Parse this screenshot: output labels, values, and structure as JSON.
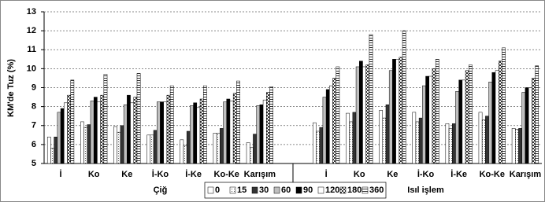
{
  "chart_data": {
    "type": "bar",
    "ylabel": "KM'de Tuz (%)",
    "categories": [
      "İ",
      "Ko",
      "Ke",
      "İ-Ko",
      "İ-Ke",
      "Ko-Ke",
      "Karışım",
      null,
      "İ",
      "Ko",
      "Ke",
      "İ-Ko",
      "İ-Ke",
      "Ko-Ke",
      "Karışım"
    ],
    "groups": [
      "Çiğ",
      "Isıl işlem"
    ],
    "ylim": [
      5,
      13
    ],
    "yticks": [
      5,
      6,
      7,
      8,
      9,
      10,
      11,
      12,
      13
    ],
    "grid": true,
    "legend": "bottom",
    "series": [
      {
        "name": "0",
        "color": "#ffffff",
        "pattern": "solid",
        "values": [
          6.4,
          7.2,
          6.95,
          6.5,
          6.25,
          6.6,
          6.1,
          null,
          7.15,
          7.65,
          7.8,
          7.7,
          7.1,
          7.7,
          6.85
        ]
      },
      {
        "name": "15",
        "color": "#bbbbbb",
        "pattern": "dots",
        "values": [
          5.8,
          6.9,
          6.65,
          6.5,
          5.95,
          6.6,
          5.85,
          null,
          6.7,
          7.2,
          7.4,
          7.2,
          6.85,
          7.3,
          6.8
        ]
      },
      {
        "name": "30",
        "color": "#333333",
        "pattern": "solid",
        "values": [
          6.4,
          7.05,
          7.0,
          6.75,
          6.7,
          6.85,
          6.55,
          null,
          6.9,
          7.7,
          8.1,
          7.4,
          7.1,
          7.5,
          6.85
        ]
      },
      {
        "name": "60",
        "color": "#bfbfbf",
        "pattern": "solid",
        "values": [
          7.7,
          8.3,
          8.1,
          8.25,
          8.05,
          8.25,
          8.05,
          null,
          8.5,
          10.1,
          9.9,
          9.1,
          8.8,
          9.3,
          8.75
        ]
      },
      {
        "name": "90",
        "color": "#000000",
        "pattern": "solid",
        "values": [
          7.9,
          8.5,
          8.6,
          8.25,
          8.2,
          8.4,
          8.1,
          null,
          8.9,
          10.4,
          10.5,
          9.6,
          9.4,
          9.8,
          9.0
        ]
      },
      {
        "name": "120",
        "color": "#ffffff",
        "pattern": "solid",
        "values": [
          8.2,
          8.25,
          8.2,
          8.25,
          7.95,
          8.3,
          8.35,
          null,
          9.1,
          10.1,
          10.5,
          9.6,
          9.4,
          9.9,
          9.0
        ]
      },
      {
        "name": "180",
        "color": "#555555",
        "pattern": "checker",
        "values": [
          8.6,
          8.6,
          8.5,
          8.6,
          8.4,
          8.7,
          8.75,
          null,
          9.5,
          10.2,
          10.6,
          10.0,
          9.9,
          10.4,
          9.5
        ]
      },
      {
        "name": "360",
        "color": "#555555",
        "pattern": "hlines",
        "values": [
          9.4,
          9.7,
          9.75,
          9.1,
          9.1,
          9.35,
          9.05,
          null,
          10.1,
          11.8,
          12.0,
          10.5,
          10.2,
          11.1,
          10.15
        ]
      }
    ]
  }
}
